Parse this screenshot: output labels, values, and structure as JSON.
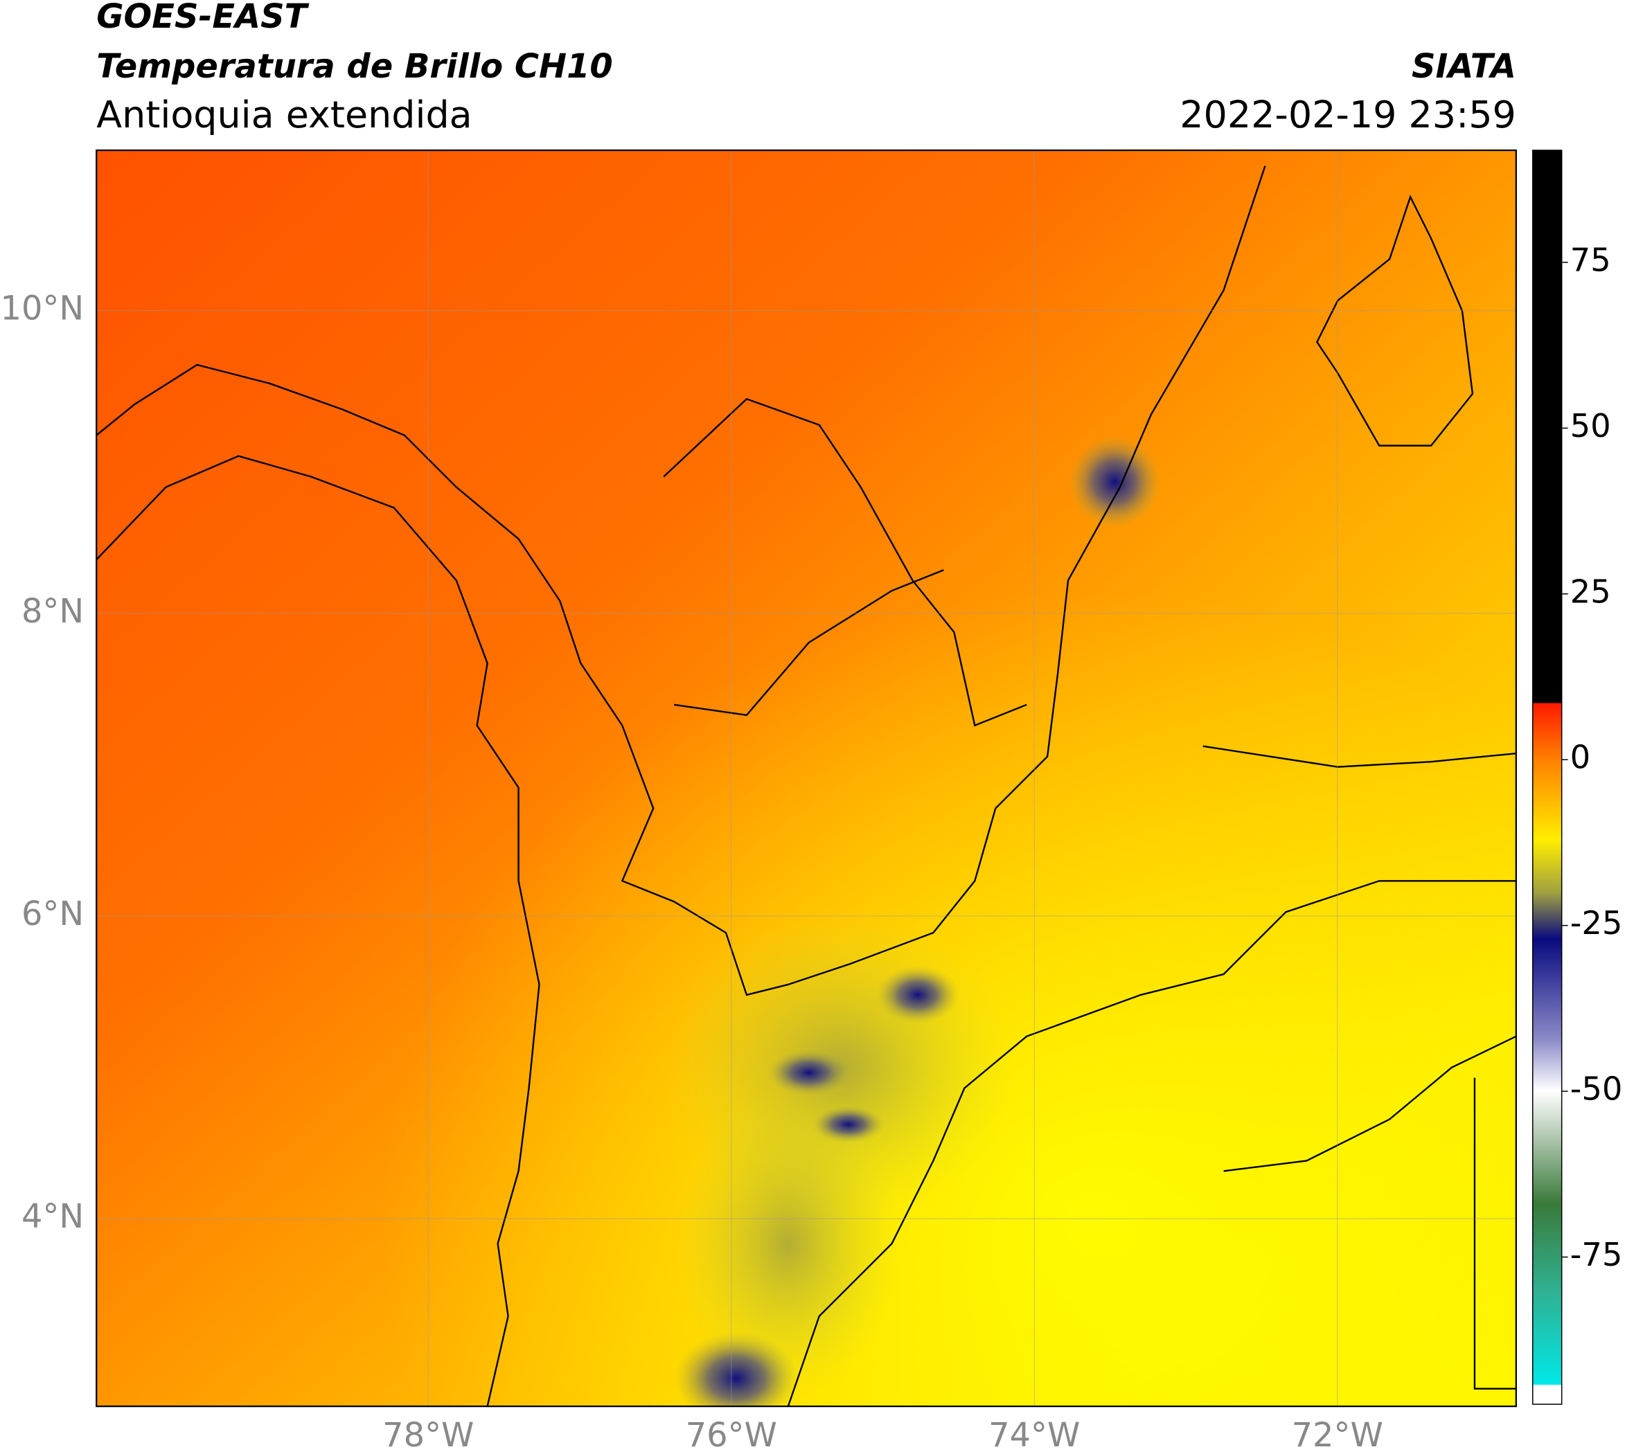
{
  "header": {
    "title": "GOES-EAST",
    "subtitle": "Temperatura de Brillo CH10",
    "region": "Antioquia extendida",
    "source": "SIATA",
    "datetime": "2022-02-19 23:59"
  },
  "map": {
    "xlim": [
      -80.19,
      -70.82
    ],
    "ylim": [
      2.76,
      11.06
    ],
    "xticks": [
      {
        "value": -78,
        "label": "78°W"
      },
      {
        "value": -76,
        "label": "76°W"
      },
      {
        "value": -74,
        "label": "74°W"
      },
      {
        "value": -72,
        "label": "72°W"
      }
    ],
    "yticks": [
      {
        "value": 4,
        "label": "4°N"
      },
      {
        "value": 6,
        "label": "6°N"
      },
      {
        "value": 8,
        "label": "8°N"
      },
      {
        "value": 10,
        "label": "10°N"
      }
    ],
    "grid": true
  },
  "colorbar": {
    "lim": [
      -97.2,
      91.9
    ],
    "ticks": [
      75,
      50,
      25,
      0,
      -25,
      -50,
      -75
    ]
  }
}
